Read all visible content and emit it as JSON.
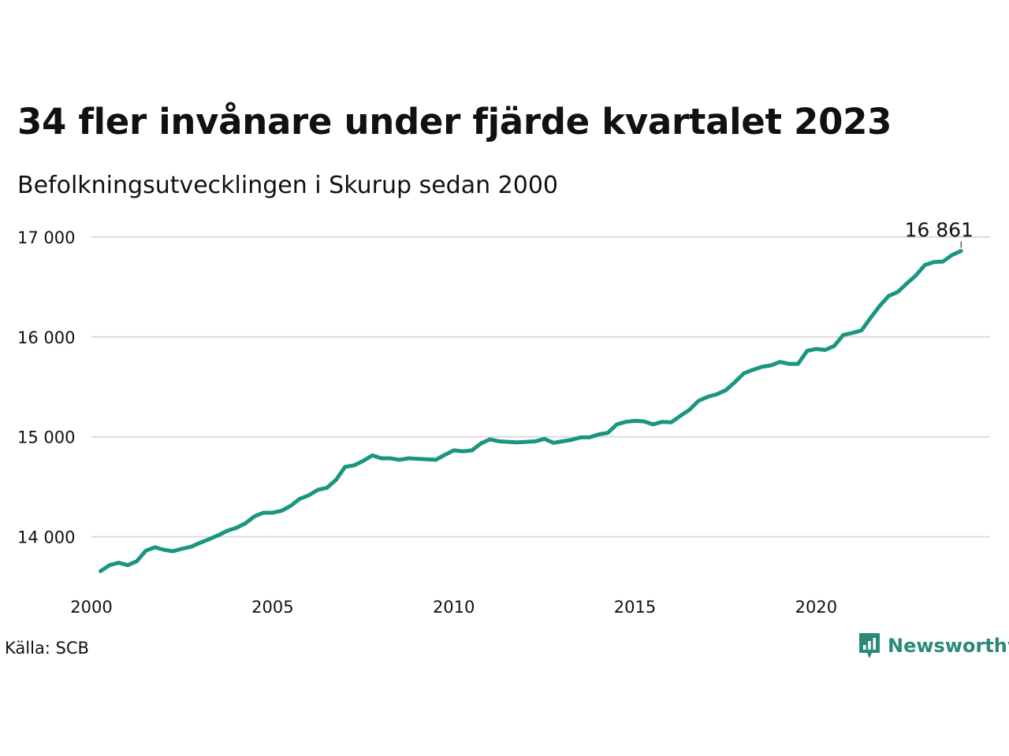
{
  "title": "34 fler invånare under fjärde kvartalet 2023",
  "subtitle": "Befolkningsutvecklingen i Skurup sedan 2000",
  "source": "Källa: SCB",
  "brand": {
    "name": "Newsworthy",
    "icon": "newsworthy-logo-icon",
    "color": "#2a8a7a"
  },
  "chart_data": {
    "type": "line",
    "title": "34 fler invånare under fjärde kvartalet 2023",
    "subtitle": "Befolkningsutvecklingen i Skurup sedan 2000",
    "xlabel": "",
    "ylabel": "",
    "xlim": [
      2000,
      2024.8
    ],
    "ylim": [
      13500,
      17150
    ],
    "xticks": [
      2000,
      2005,
      2010,
      2015,
      2020
    ],
    "xtick_labels": [
      "2000",
      "2005",
      "2010",
      "2015",
      "2020"
    ],
    "yticks": [
      14000,
      15000,
      16000,
      17000
    ],
    "ytick_labels": [
      "14 000",
      "15 000",
      "16 000",
      "17 000"
    ],
    "grid": "horizontal",
    "line_color": "#1a9680",
    "end_label": "16 861",
    "series": [
      {
        "x": [
          2000.25,
          2000.5,
          2000.75,
          2001.0,
          2001.25,
          2001.5,
          2001.75,
          2002.0,
          2002.25,
          2002.5,
          2002.75,
          2003.0,
          2003.25,
          2003.5,
          2003.75,
          2004.0,
          2004.25,
          2004.5,
          2004.75,
          2005.0,
          2005.25,
          2005.5,
          2005.75,
          2006.0,
          2006.25,
          2006.5,
          2006.75,
          2007.0,
          2007.25,
          2007.5,
          2007.75,
          2008.0,
          2008.25,
          2008.5,
          2008.75,
          2009.0,
          2009.25,
          2009.5,
          2009.75,
          2010.0,
          2010.25,
          2010.5,
          2010.75,
          2011.0,
          2011.25,
          2011.5,
          2011.75,
          2012.0,
          2012.25,
          2012.5,
          2012.75,
          2013.0,
          2013.25,
          2013.5,
          2013.75,
          2014.0,
          2014.25,
          2014.5,
          2014.75,
          2015.0,
          2015.25,
          2015.5,
          2015.75,
          2016.0,
          2016.25,
          2016.5,
          2016.75,
          2017.0,
          2017.25,
          2017.5,
          2017.75,
          2018.0,
          2018.25,
          2018.5,
          2018.75,
          2019.0,
          2019.25,
          2019.5,
          2019.75,
          2020.0,
          2020.25,
          2020.5,
          2020.75,
          2021.0,
          2021.25,
          2021.5,
          2021.75,
          2022.0,
          2022.25,
          2022.5,
          2022.75,
          2023.0,
          2023.25,
          2023.5,
          2023.75,
          2024.0
        ],
        "values": [
          13655,
          13715,
          13740,
          13715,
          13755,
          13860,
          13895,
          13870,
          13855,
          13880,
          13900,
          13940,
          13975,
          14015,
          14060,
          14090,
          14135,
          14205,
          14240,
          14240,
          14260,
          14310,
          14380,
          14415,
          14470,
          14490,
          14570,
          14700,
          14715,
          14760,
          14815,
          14785,
          14785,
          14770,
          14785,
          14780,
          14775,
          14770,
          14820,
          14865,
          14855,
          14865,
          14935,
          14975,
          14955,
          14950,
          14945,
          14950,
          14955,
          14980,
          14940,
          14955,
          14970,
          14995,
          14995,
          15025,
          15040,
          15125,
          15150,
          15160,
          15155,
          15125,
          15150,
          15145,
          15210,
          15270,
          15360,
          15400,
          15425,
          15465,
          15545,
          15635,
          15670,
          15700,
          15715,
          15750,
          15730,
          15730,
          15860,
          15880,
          15870,
          15910,
          16020,
          16040,
          16065,
          16190,
          16310,
          16410,
          16450,
          16535,
          16615,
          16720,
          16750,
          16755,
          16820,
          16861
        ]
      }
    ]
  }
}
